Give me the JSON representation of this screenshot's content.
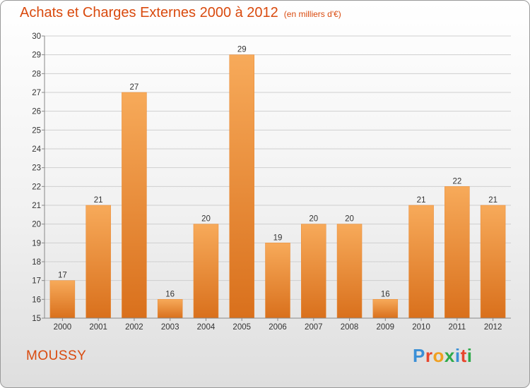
{
  "header": {
    "title": "Achats et Charges Externes 2000 à 2012",
    "subtitle": "(en milliers d'€)"
  },
  "footer": {
    "location": "MOUSSY",
    "brand": "Proxiti",
    "brand_colors": [
      "#3a8fd6",
      "#e8452c",
      "#f0a020",
      "#2eaa4a",
      "#3a8fd6",
      "#e8452c",
      "#2eaa4a"
    ]
  },
  "colors": {
    "bar_light": "#f7aa5a",
    "bar_dark": "#d9701c",
    "accent": "#d94a0e"
  },
  "chart_data": {
    "type": "bar",
    "categories": [
      "2000",
      "2001",
      "2002",
      "2003",
      "2004",
      "2005",
      "2006",
      "2007",
      "2008",
      "2009",
      "2010",
      "2011",
      "2012"
    ],
    "values": [
      17,
      21,
      27,
      16,
      20,
      29,
      19,
      20,
      20,
      16,
      21,
      22,
      21
    ],
    "title": "Achats et Charges Externes 2000 à 2012",
    "xlabel": "",
    "ylabel": "",
    "ylim": [
      15,
      30
    ],
    "yticks": [
      15,
      16,
      17,
      18,
      19,
      20,
      21,
      22,
      23,
      24,
      25,
      26,
      27,
      28,
      29,
      30
    ],
    "grid": true,
    "data_labels": true
  }
}
